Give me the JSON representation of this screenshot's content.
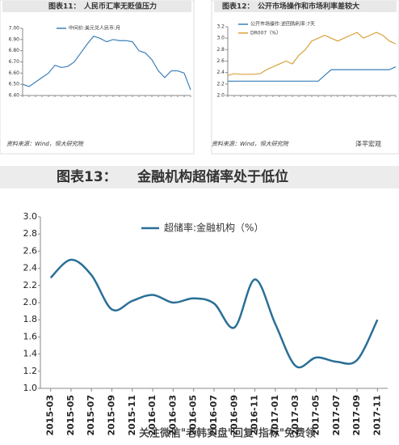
{
  "chart_data": [
    {
      "type": "line",
      "title": "图表11：　人民币汇率无贬值压力",
      "source": "资料来源：Wind，恒大研究院",
      "ylim": [
        6.4,
        7.0
      ],
      "yticks": [
        {
          "value": 6.4,
          "label": "6.40"
        },
        {
          "value": 6.5,
          "label": "6.50"
        },
        {
          "value": 6.6,
          "label": "6.60"
        },
        {
          "value": 6.7,
          "label": "6.70"
        },
        {
          "value": 6.8,
          "label": "6.80"
        },
        {
          "value": 6.9,
          "label": "6.90"
        },
        {
          "value": 7.0,
          "label": "7.00"
        }
      ],
      "series": [
        {
          "name": "中间价:美元兑人民币:月",
          "color": "#3a7fb8",
          "values": [
            6.5,
            6.48,
            6.52,
            6.56,
            6.6,
            6.67,
            6.65,
            6.66,
            6.7,
            6.78,
            6.86,
            6.93,
            6.91,
            6.88,
            6.9,
            6.89,
            6.89,
            6.88,
            6.8,
            6.78,
            6.72,
            6.62,
            6.56,
            6.62,
            6.62,
            6.6,
            6.45
          ]
        }
      ]
    },
    {
      "type": "line",
      "title": "图表12：　公开市场操作和市场利率差较大",
      "source": "资料来源：Wind，恒大研究院",
      "watermark": "泽平宏观",
      "ylim": [
        2.0,
        3.2
      ],
      "yticks": [
        {
          "value": 2.0,
          "label": "2.0"
        },
        {
          "value": 2.2,
          "label": "2.2"
        },
        {
          "value": 2.4,
          "label": "2.4"
        },
        {
          "value": 2.6,
          "label": "2.6"
        },
        {
          "value": 2.8,
          "label": "2.8"
        },
        {
          "value": 3.0,
          "label": "3.0"
        },
        {
          "value": 3.2,
          "label": "3.2"
        }
      ],
      "series": [
        {
          "name": "公开市场操作:逆回购利率:7天",
          "color": "#3a7fb8",
          "values": [
            2.25,
            2.25,
            2.25,
            2.25,
            2.25,
            2.25,
            2.25,
            2.25,
            2.25,
            2.25,
            2.25,
            2.25,
            2.25,
            2.25,
            2.25,
            2.35,
            2.45,
            2.45,
            2.45,
            2.45,
            2.45,
            2.45,
            2.45,
            2.45,
            2.45,
            2.45,
            2.5
          ]
        },
        {
          "name": "DR007（%）",
          "color": "#d9a13a",
          "values": [
            2.35,
            2.38,
            2.37,
            2.37,
            2.37,
            2.38,
            2.45,
            2.5,
            2.55,
            2.6,
            2.55,
            2.7,
            2.8,
            2.95,
            3.0,
            3.05,
            3.0,
            2.95,
            3.0,
            3.05,
            3.1,
            3.0,
            3.05,
            3.1,
            3.05,
            2.95,
            2.9
          ]
        }
      ]
    },
    {
      "type": "line",
      "title": "图表13：　　金融机构超储率处于低位",
      "footer": "关注微信\"老韩实盘\"回复\"指标\"免费领",
      "categories": [
        "2015-03",
        "2015-05",
        "2015-07",
        "2015-09",
        "2015-11",
        "2016-01",
        "2016-03",
        "2016-05",
        "2016-07",
        "2016-09",
        "2016-11",
        "2017-01",
        "2017-03",
        "2017-05",
        "2017-07",
        "2017-09",
        "2017-11"
      ],
      "ylim": [
        1.0,
        3.0
      ],
      "yticks": [
        {
          "value": 1.0,
          "label": "1.0"
        },
        {
          "value": 1.2,
          "label": "1.2"
        },
        {
          "value": 1.4,
          "label": "1.4"
        },
        {
          "value": 1.6,
          "label": "1.6"
        },
        {
          "value": 1.8,
          "label": "1.8"
        },
        {
          "value": 2.0,
          "label": "2.0"
        },
        {
          "value": 2.2,
          "label": "2.2"
        },
        {
          "value": 2.4,
          "label": "2.4"
        },
        {
          "value": 2.6,
          "label": "2.6"
        },
        {
          "value": 2.8,
          "label": "2.8"
        },
        {
          "value": 3.0,
          "label": "3.0"
        }
      ],
      "series": [
        {
          "name": "超储率:金融机构（%）",
          "color": "#2a6f97",
          "values": [
            2.29,
            2.5,
            2.32,
            1.92,
            2.02,
            2.09,
            2.0,
            2.05,
            1.99,
            1.71,
            2.27,
            1.75,
            1.26,
            1.36,
            1.31,
            1.33,
            1.8
          ]
        }
      ]
    }
  ]
}
